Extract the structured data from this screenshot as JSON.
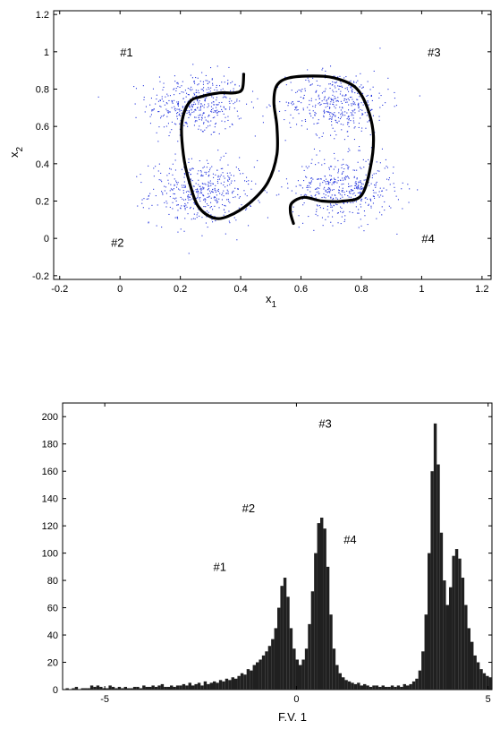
{
  "chart_data": [
    {
      "type": "scatter",
      "title": "",
      "xlabel": "x",
      "xlabel_sub": "1",
      "ylabel": "x",
      "ylabel_sub": "2",
      "xlim": [
        -0.22,
        1.23
      ],
      "ylim": [
        -0.22,
        1.22
      ],
      "xticks": [
        -0.2,
        0,
        0.2,
        0.4,
        0.6,
        0.8,
        1,
        1.2
      ],
      "xtick_labels": [
        "-0.2",
        "0",
        "0.2",
        "0.4",
        "0.6",
        "0.8",
        "1",
        "1.2"
      ],
      "yticks": [
        -0.2,
        0,
        0.2,
        0.4,
        0.6,
        0.8,
        1,
        1.2
      ],
      "ytick_labels": [
        "-0.2",
        "0",
        "0.2",
        "0.4",
        "0.6",
        "0.8",
        "1",
        "1.2"
      ],
      "grid": false,
      "point_color": "#2233dd",
      "curve_color": "#000000",
      "clusters": [
        {
          "label": "#1",
          "center": [
            0.25,
            0.72
          ],
          "spread": [
            0.08,
            0.085
          ],
          "n": 420,
          "label_pos": [
            0.0,
            1.0
          ]
        },
        {
          "label": "#2",
          "center": [
            0.27,
            0.25
          ],
          "spread": [
            0.085,
            0.085
          ],
          "n": 440,
          "label_pos": [
            -0.03,
            -0.02
          ]
        },
        {
          "label": "#3",
          "center": [
            0.72,
            0.73
          ],
          "spread": [
            0.085,
            0.085
          ],
          "n": 420,
          "label_pos": [
            1.02,
            1.0
          ]
        },
        {
          "label": "#4",
          "center": [
            0.74,
            0.27
          ],
          "spread": [
            0.085,
            0.085
          ],
          "n": 450,
          "label_pos": [
            1.0,
            0.0
          ]
        }
      ],
      "curves": [
        {
          "name": "left-boundary",
          "points": [
            [
              0.41,
              0.88
            ],
            [
              0.405,
              0.8
            ],
            [
              0.38,
              0.78
            ],
            [
              0.33,
              0.78
            ],
            [
              0.27,
              0.76
            ],
            [
              0.23,
              0.73
            ],
            [
              0.205,
              0.62
            ],
            [
              0.21,
              0.45
            ],
            [
              0.23,
              0.3
            ],
            [
              0.26,
              0.17
            ],
            [
              0.31,
              0.11
            ],
            [
              0.36,
              0.12
            ],
            [
              0.43,
              0.19
            ],
            [
              0.49,
              0.3
            ],
            [
              0.52,
              0.45
            ],
            [
              0.52,
              0.6
            ],
            [
              0.51,
              0.73
            ],
            [
              0.52,
              0.82
            ],
            [
              0.56,
              0.86
            ],
            [
              0.64,
              0.87
            ],
            [
              0.71,
              0.86
            ],
            [
              0.78,
              0.81
            ],
            [
              0.82,
              0.7
            ],
            [
              0.84,
              0.55
            ],
            [
              0.83,
              0.38
            ],
            [
              0.8,
              0.23
            ],
            [
              0.74,
              0.2
            ],
            [
              0.67,
              0.2
            ],
            [
              0.61,
              0.22
            ],
            [
              0.57,
              0.19
            ],
            [
              0.565,
              0.14
            ],
            [
              0.575,
              0.08
            ]
          ]
        }
      ]
    },
    {
      "type": "bar",
      "title": "",
      "xlabel": "F.V. 1",
      "ylabel": "",
      "xlim": [
        -6.1,
        5.1
      ],
      "ylim": [
        0,
        210
      ],
      "xticks": [
        -5,
        0,
        5
      ],
      "xtick_labels": [
        "-5",
        "0",
        "5"
      ],
      "yticks": [
        0,
        20,
        40,
        60,
        80,
        100,
        120,
        140,
        160,
        180,
        200
      ],
      "ytick_labels": [
        "0",
        "20",
        "40",
        "60",
        "80",
        "100",
        "120",
        "140",
        "160",
        "180",
        "200"
      ],
      "grid": false,
      "bar_color": "#202020",
      "bin_start": -6.1,
      "bin_width": 0.08,
      "values": [
        0,
        1,
        0,
        1,
        2,
        0,
        1,
        1,
        1,
        3,
        2,
        3,
        2,
        1,
        1,
        3,
        2,
        1,
        2,
        1,
        2,
        1,
        1,
        2,
        2,
        1,
        3,
        2,
        2,
        3,
        2,
        3,
        4,
        2,
        2,
        3,
        2,
        3,
        3,
        4,
        3,
        5,
        3,
        4,
        5,
        3,
        6,
        4,
        5,
        6,
        5,
        7,
        6,
        8,
        7,
        9,
        8,
        10,
        12,
        11,
        15,
        14,
        18,
        20,
        22,
        25,
        28,
        32,
        37,
        45,
        60,
        76,
        82,
        68,
        45,
        30,
        22,
        18,
        22,
        30,
        48,
        72,
        100,
        122,
        126,
        118,
        90,
        55,
        30,
        18,
        12,
        9,
        7,
        6,
        5,
        4,
        5,
        3,
        4,
        3,
        2,
        3,
        3,
        2,
        3,
        2,
        2,
        3,
        2,
        3,
        2,
        4,
        3,
        4,
        6,
        8,
        14,
        28,
        55,
        100,
        160,
        195,
        165,
        115,
        80,
        62,
        75,
        98,
        103,
        96,
        82,
        62,
        45,
        35,
        25,
        20,
        15,
        12,
        10,
        9,
        7,
        6,
        5,
        6,
        4,
        5,
        3,
        4,
        3,
        3,
        2,
        3,
        2,
        2,
        3,
        1,
        2,
        2,
        1,
        2,
        2,
        1,
        1,
        2,
        1,
        1,
        2,
        1,
        1,
        1,
        0,
        1,
        1,
        0,
        1,
        1,
        0,
        1,
        0,
        1,
        0,
        1,
        0,
        0,
        1,
        0,
        0,
        1,
        0,
        0,
        0,
        1,
        0,
        0,
        0,
        0,
        1,
        0,
        0,
        0,
        0,
        0,
        0,
        1,
        0,
        0,
        0,
        0,
        0,
        0,
        0,
        0,
        0,
        0,
        0,
        0,
        0,
        0,
        0,
        0,
        0
      ],
      "annotations": [
        {
          "label": "#1",
          "x": -2.0,
          "y": 87
        },
        {
          "label": "#2",
          "x": -1.25,
          "y": 130
        },
        {
          "label": "#3",
          "x": 0.75,
          "y": 192
        },
        {
          "label": "#4",
          "x": 1.4,
          "y": 107
        }
      ]
    }
  ]
}
